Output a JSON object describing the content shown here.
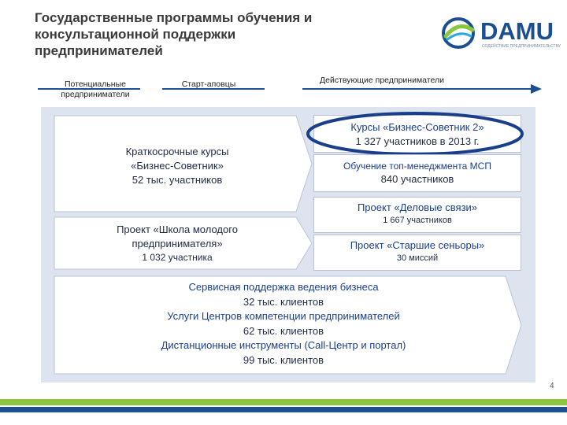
{
  "title": "Государственные программы обучения и консультационной поддержки предпринимателей",
  "logo": {
    "brand": "DAMU",
    "tagline": "СОДЕЙСТВИЕ ПРЕДПРИНИМАТЕЛЬСТВУ"
  },
  "stages": {
    "potential": "Потенциальные предприниматели",
    "startups": "Старт-аповцы",
    "active": "Действующие предприниматели"
  },
  "programs": {
    "short_courses": {
      "line1": "Краткосрочные курсы",
      "line2": "«Бизнес-Советник»",
      "line3": "52 тыс. участников"
    },
    "business_advisor2": {
      "line1": "Курсы «Бизнес-Советник 2»",
      "line2": "1 327 участников в 2013 г."
    },
    "top_management": {
      "line1": "Обучение топ-менеджмента МСП",
      "line2": "840 участников"
    },
    "young_entrepreneur": {
      "line1": "Проект «Школа молодого",
      "line2": "предпринимателя»",
      "line3": "1 032 участника"
    },
    "business_connections": {
      "line1": "Проект «Деловые связи»",
      "line2": "1 667 участников"
    },
    "senior_experts": {
      "line1": "Проект «Старшие сеньоры»",
      "line2": "30 миссий"
    },
    "service_support": {
      "line1": "Сервисная поддержка ведения бизнеса",
      "line2": "32 тыс. клиентов",
      "line3": "Услуги Центров компетенции предпринимателей",
      "line4": "62 тыс. клиентов",
      "line5": "Дистанционные инструменты (Call-Центр и портал)",
      "line6": "99 тыс. клиентов"
    }
  },
  "page_number": "4",
  "colors": {
    "accent_blue": "#1b4f8f",
    "accent_green": "#8cc63f",
    "panel": "#dde4ef",
    "highlight_ring": "#1a3f8a"
  }
}
